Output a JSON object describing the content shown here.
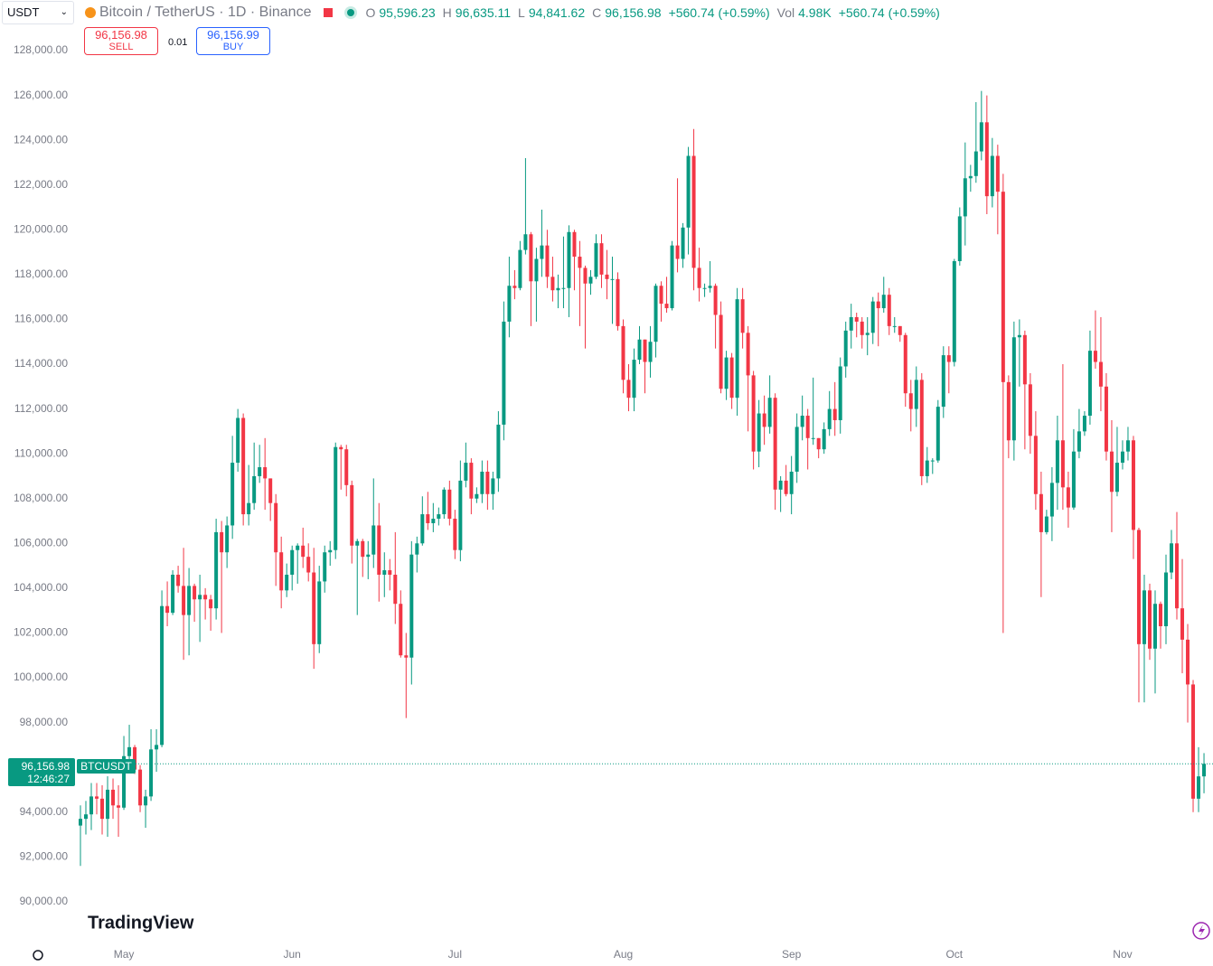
{
  "header": {
    "currency": "USDT",
    "symbol": "Bitcoin / TetherUS · 1D · Binance",
    "o_label": "O",
    "o": "95,596.23",
    "h_label": "H",
    "h": "96,635.11",
    "l_label": "L",
    "l": "94,841.62",
    "c_label": "C",
    "c": "96,156.98",
    "change": "+560.74 (+0.59%)",
    "vol_label": "Vol",
    "vol": "4.98K",
    "vol_change": "+560.74 (+0.59%)",
    "sell_price": "96,156.98",
    "sell": "SELL",
    "spread": "0.01",
    "buy_price": "96,156.99",
    "buy": "BUY",
    "last_price": "96,156.98",
    "countdown": "12:46:27",
    "ticker": "BTCUSDT",
    "logo": "TradingView"
  },
  "chart_data": {
    "type": "candlestick",
    "up_color": "#089981",
    "down_color": "#f23645",
    "ylim": [
      88300,
      130260
    ],
    "yticks": [
      {
        "value": 90000,
        "label": "90,000.00"
      },
      {
        "value": 92000,
        "label": "92,000.00"
      },
      {
        "value": 94000,
        "label": "94,000.00"
      },
      {
        "value": 96000,
        "label": "96,000.00"
      },
      {
        "value": 98000,
        "label": "98,000.00"
      },
      {
        "value": 100000,
        "label": "100,000.00"
      },
      {
        "value": 102000,
        "label": "102,000.00"
      },
      {
        "value": 104000,
        "label": "104,000.00"
      },
      {
        "value": 106000,
        "label": "106,000.00"
      },
      {
        "value": 108000,
        "label": "108,000.00"
      },
      {
        "value": 110000,
        "label": "110,000.00"
      },
      {
        "value": 112000,
        "label": "112,000.00"
      },
      {
        "value": 114000,
        "label": "114,000.00"
      },
      {
        "value": 116000,
        "label": "116,000.00"
      },
      {
        "value": 118000,
        "label": "118,000.00"
      },
      {
        "value": 120000,
        "label": "120,000.00"
      },
      {
        "value": 122000,
        "label": "122,000.00"
      },
      {
        "value": 124000,
        "label": "124,000.00"
      },
      {
        "value": 126000,
        "label": "126,000.00"
      },
      {
        "value": 128000,
        "label": "128,000.00"
      }
    ],
    "categories": [
      null,
      null,
      null,
      null,
      null,
      null,
      null,
      null,
      "May",
      null,
      null,
      null,
      null,
      null,
      null,
      null,
      null,
      null,
      null,
      null,
      null,
      null,
      null,
      null,
      null,
      null,
      null,
      null,
      null,
      null,
      null,
      null,
      null,
      null,
      null,
      null,
      null,
      null,
      null,
      "Jun",
      null,
      null,
      null,
      null,
      null,
      null,
      null,
      null,
      null,
      null,
      null,
      null,
      null,
      null,
      null,
      null,
      null,
      null,
      null,
      null,
      null,
      null,
      null,
      null,
      null,
      null,
      null,
      null,
      null,
      "Jul",
      null,
      null,
      null,
      null,
      null,
      null,
      null,
      null,
      null,
      null,
      null,
      null,
      null,
      null,
      null,
      null,
      null,
      null,
      null,
      null,
      null,
      null,
      null,
      null,
      null,
      null,
      null,
      null,
      null,
      null,
      "Aug",
      null,
      null,
      null,
      null,
      null,
      null,
      null,
      null,
      null,
      null,
      null,
      null,
      null,
      null,
      null,
      null,
      null,
      null,
      null,
      null,
      null,
      null,
      null,
      null,
      null,
      null,
      null,
      null,
      null,
      null,
      "Sep",
      null,
      null,
      null,
      null,
      null,
      null,
      null,
      null,
      null,
      null,
      null,
      null,
      null,
      null,
      null,
      null,
      null,
      null,
      null,
      null,
      null,
      null,
      null,
      null,
      null,
      null,
      null,
      null,
      null,
      "Oct",
      null,
      null,
      null,
      null,
      null,
      null,
      null,
      null,
      null,
      null,
      null,
      null,
      null,
      null,
      null,
      null,
      null,
      null,
      null,
      null,
      null,
      null,
      null,
      null,
      null,
      null,
      null,
      null,
      null,
      null,
      "Nov",
      null,
      null,
      null,
      null,
      null,
      null,
      null,
      null,
      null,
      null,
      null,
      null,
      null,
      null,
      null
    ],
    "open": [
      93400,
      93700,
      93900,
      94700,
      94600,
      93700,
      95000,
      94300,
      94200,
      96500,
      96900,
      95900,
      94300,
      94700,
      96800,
      97000,
      103200,
      102900,
      104600,
      104100,
      102800,
      104100,
      103500,
      103700,
      103500,
      103100,
      106500,
      105600,
      106800,
      109600,
      111600,
      107300,
      107800,
      109000,
      109400,
      108900,
      107800,
      105600,
      103900,
      104600,
      105700,
      105900,
      105400,
      104700,
      101500,
      104300,
      105600,
      105700,
      110300,
      110200,
      108600,
      105900,
      106100,
      105400,
      105500,
      106800,
      104600,
      104800,
      104600,
      103300,
      101000,
      100900,
      105500,
      106000,
      107300,
      106900,
      107100,
      107300,
      108400,
      107100,
      105700,
      108800,
      109600,
      108000,
      108200,
      109200,
      108200,
      108900,
      111300,
      115900,
      117500,
      117400,
      119100,
      119800,
      117700,
      118700,
      119300,
      117900,
      117300,
      117400,
      117400,
      119900,
      118800,
      118300,
      117600,
      117900,
      119400,
      118000,
      117800,
      117800,
      115700,
      113300,
      112500,
      114200,
      115100,
      114100,
      115000,
      117500,
      116700,
      116500,
      119300,
      118700,
      120100,
      123300,
      118300,
      117400,
      117400,
      117500,
      116200,
      112900,
      114300,
      112500,
      116900,
      115400,
      113500,
      110100,
      111800,
      111200,
      112500,
      108400,
      108800,
      108200,
      109200,
      111200,
      111700,
      110700,
      110700,
      110200,
      111100,
      112000,
      111500,
      113900,
      115500,
      116100,
      115900,
      115300,
      115400,
      116800,
      116500,
      117100,
      115700,
      115700,
      115300,
      112700,
      112000,
      113300,
      109000,
      109700,
      109700,
      112100,
      114400,
      114100,
      118600,
      120600,
      122300,
      122400,
      123500,
      124800,
      121500,
      123300,
      121700,
      113200,
      110600,
      115200,
      115300,
      113100,
      110800,
      108200,
      106500,
      107200,
      108700,
      110600,
      108500,
      107600,
      110100,
      111000,
      111700,
      114600,
      114100,
      113000,
      110100,
      108300,
      109600,
      110100,
      110600,
      106600,
      101500,
      103900,
      101300,
      103300,
      102300,
      104700,
      106000,
      103100,
      101700,
      99700,
      94600,
      95596.23
    ],
    "high": [
      94300,
      94500,
      95300,
      95300,
      95200,
      95600,
      95500,
      95200,
      97400,
      97900,
      97000,
      96100,
      95000,
      97700,
      97700,
      103900,
      104300,
      104800,
      105000,
      105800,
      104900,
      104200,
      104600,
      104000,
      103700,
      107100,
      107000,
      107200,
      110800,
      112000,
      111800,
      109500,
      110500,
      110400,
      110700,
      108900,
      108200,
      106300,
      105100,
      105900,
      106000,
      106700,
      106000,
      105800,
      105000,
      105900,
      106100,
      110500,
      110400,
      110400,
      108800,
      106200,
      106200,
      106100,
      108900,
      107800,
      105600,
      105300,
      106500,
      103900,
      102000,
      106100,
      106300,
      108100,
      108300,
      107800,
      107600,
      108500,
      108800,
      107500,
      109700,
      110500,
      109800,
      108500,
      109700,
      109700,
      109200,
      111900,
      116800,
      118800,
      118200,
      119500,
      123200,
      119900,
      119200,
      120900,
      120000,
      118800,
      118000,
      119700,
      120200,
      120000,
      119500,
      118400,
      118200,
      119800,
      119800,
      119100,
      118800,
      118100,
      116000,
      114000,
      114700,
      115700,
      115100,
      115700,
      117600,
      117700,
      117900,
      119500,
      122300,
      120300,
      123700,
      124500,
      119200,
      117600,
      118600,
      117600,
      116800,
      114600,
      114500,
      117400,
      117400,
      115700,
      113700,
      112400,
      112600,
      113500,
      112700,
      109000,
      109500,
      109900,
      111800,
      112600,
      112000,
      113400,
      110700,
      111400,
      112800,
      113200,
      114300,
      115900,
      116700,
      116300,
      116100,
      116100,
      117000,
      117200,
      117900,
      117400,
      116100,
      115700,
      115400,
      113300,
      113900,
      113600,
      110300,
      109800,
      112400,
      114800,
      114800,
      118700,
      121000,
      123900,
      122900,
      125700,
      126200,
      126000,
      124100,
      123800,
      122500,
      113500,
      115900,
      116000,
      115500,
      113600,
      111900,
      109200,
      107500,
      109400,
      111700,
      114000,
      109200,
      111100,
      112000,
      111900,
      115500,
      116400,
      116100,
      113600,
      111500,
      111200,
      110600,
      111200,
      110800,
      106700,
      104600,
      104200,
      103900,
      103400,
      105500,
      106600,
      107400,
      105300,
      102400,
      99900,
      96900,
      96635.11
    ],
    "low": [
      91600,
      93000,
      93200,
      93900,
      93000,
      92900,
      93700,
      92900,
      94100,
      95800,
      95700,
      94000,
      93300,
      94500,
      95800,
      96900,
      102300,
      102800,
      103800,
      100800,
      101000,
      102500,
      101600,
      102600,
      102100,
      102600,
      102000,
      104900,
      106200,
      109200,
      106800,
      106800,
      107500,
      108700,
      107500,
      107000,
      104100,
      103100,
      103600,
      103900,
      104200,
      104900,
      104300,
      100400,
      101100,
      103800,
      105000,
      105300,
      108400,
      108100,
      105100,
      102800,
      104500,
      104400,
      104900,
      103400,
      103600,
      103900,
      102400,
      100900,
      98200,
      99700,
      104700,
      105900,
      106600,
      106500,
      106800,
      107100,
      106800,
      105300,
      105200,
      108500,
      107300,
      107800,
      107800,
      107500,
      107500,
      108300,
      110600,
      115200,
      116900,
      117300,
      118900,
      115700,
      115900,
      117900,
      117400,
      116800,
      116500,
      116500,
      116100,
      117300,
      115700,
      114700,
      117100,
      117800,
      117400,
      116900,
      115800,
      115500,
      112700,
      111900,
      111900,
      114000,
      112700,
      113400,
      114300,
      115900,
      116300,
      116400,
      118100,
      118300,
      118900,
      117300,
      116800,
      117000,
      117200,
      114700,
      112700,
      112400,
      112000,
      111700,
      114700,
      111000,
      109300,
      109400,
      110400,
      110900,
      107500,
      107400,
      108100,
      107300,
      108700,
      110600,
      109300,
      110400,
      109800,
      110000,
      110800,
      110800,
      110900,
      113400,
      114700,
      115200,
      114700,
      114400,
      114900,
      114800,
      116300,
      115300,
      115400,
      115000,
      112100,
      111000,
      111200,
      108600,
      108700,
      109100,
      109600,
      111600,
      112700,
      113900,
      118400,
      119300,
      121700,
      122100,
      123100,
      120700,
      121000,
      119800,
      102000,
      109800,
      109700,
      113000,
      110200,
      110000,
      107500,
      103600,
      106400,
      106100,
      107500,
      107500,
      106700,
      107500,
      109800,
      110800,
      111300,
      113800,
      111900,
      109700,
      106500,
      108100,
      109300,
      109700,
      105300,
      98900,
      98900,
      100800,
      99300,
      101300,
      101500,
      104400,
      102600,
      100200,
      98000,
      94000,
      94000,
      94841.62
    ],
    "close": [
      93700,
      93900,
      94700,
      94600,
      93700,
      95000,
      94300,
      94200,
      96500,
      96900,
      95900,
      94300,
      94700,
      96800,
      97000,
      103200,
      102900,
      104600,
      104100,
      102800,
      104100,
      103500,
      103700,
      103500,
      103100,
      106500,
      105600,
      106800,
      109600,
      111600,
      107300,
      107800,
      109000,
      109400,
      108900,
      107800,
      105600,
      103900,
      104600,
      105700,
      105900,
      105400,
      104700,
      101500,
      104300,
      105600,
      105700,
      110300,
      110200,
      108600,
      105900,
      106100,
      105400,
      105500,
      106800,
      104600,
      104800,
      104600,
      103300,
      101000,
      100900,
      105500,
      106000,
      107300,
      106900,
      107100,
      107300,
      108400,
      107100,
      105700,
      108800,
      109600,
      108000,
      108200,
      109200,
      108200,
      108900,
      111300,
      115900,
      117500,
      117400,
      119100,
      119800,
      117700,
      118700,
      119300,
      117900,
      117300,
      117400,
      117400,
      119900,
      118800,
      118300,
      117600,
      117900,
      119400,
      118000,
      117800,
      117800,
      115700,
      113300,
      112500,
      114200,
      115100,
      114100,
      115000,
      117500,
      116700,
      116500,
      119300,
      118700,
      120100,
      123300,
      118300,
      117400,
      117400,
      117500,
      116200,
      112900,
      114300,
      112500,
      116900,
      115400,
      113500,
      110100,
      111800,
      111200,
      112500,
      108400,
      108800,
      108200,
      109200,
      111200,
      111700,
      110700,
      110700,
      110200,
      111100,
      112000,
      111500,
      113900,
      115500,
      116100,
      115900,
      115300,
      115400,
      116800,
      116500,
      117100,
      115700,
      115700,
      115300,
      112700,
      112000,
      113300,
      109000,
      109700,
      109700,
      112100,
      114400,
      114100,
      118600,
      120600,
      122300,
      122400,
      123500,
      124800,
      121500,
      123300,
      121700,
      113200,
      110600,
      115200,
      115300,
      113100,
      110800,
      108200,
      106500,
      107200,
      108700,
      110600,
      108500,
      107600,
      110100,
      111000,
      111700,
      114600,
      114100,
      113000,
      110100,
      108300,
      109600,
      110100,
      110600,
      106600,
      101500,
      103900,
      101300,
      103300,
      102300,
      104700,
      106000,
      103100,
      101700,
      99700,
      94600,
      95596.23,
      96156.98
    ]
  }
}
